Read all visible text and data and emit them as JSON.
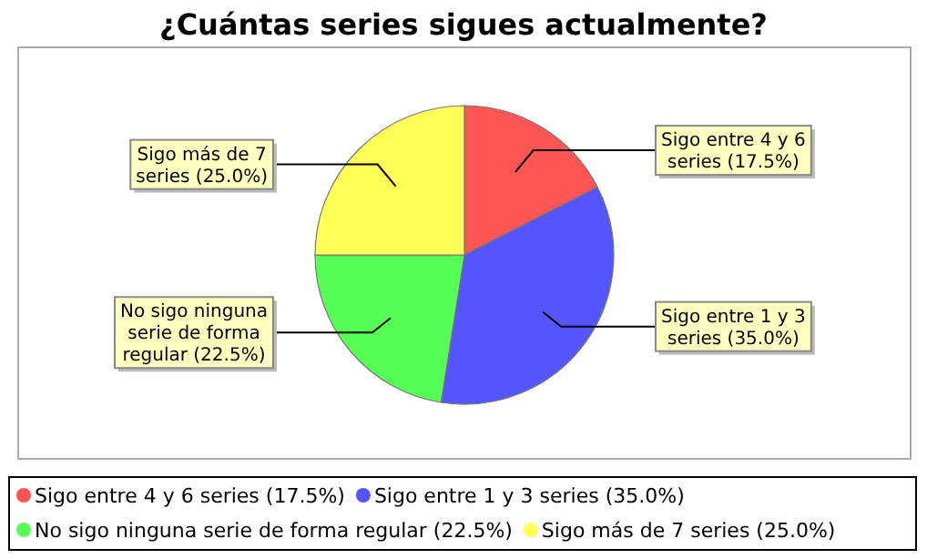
{
  "chart_data": {
    "type": "pie",
    "title": "¿Cuántas series sigues actualmente?",
    "categories": [
      "Sigo entre 4 y 6 series",
      "Sigo entre 1 y 3 series",
      "No sigo ninguna serie de forma regular",
      "Sigo más de 7 series"
    ],
    "values": [
      17.5,
      35.0,
      22.5,
      25.0
    ],
    "colors": [
      "#ff5555",
      "#5555ff",
      "#55ff55",
      "#ffff55"
    ],
    "value_labels": [
      "(17.5%)",
      "(35.0%)",
      "(22.5%)",
      "(25.0%)"
    ],
    "legend": "bottom"
  }
}
